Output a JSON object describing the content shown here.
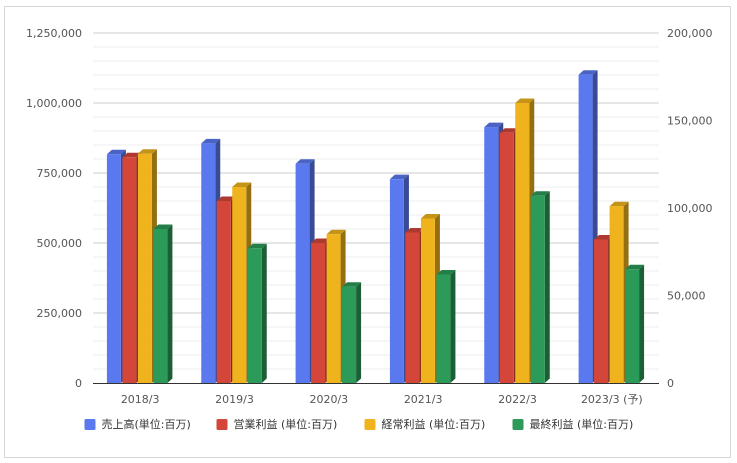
{
  "chart_data": {
    "type": "bar",
    "style": "3d-clustered",
    "categories": [
      "2018/3",
      "2019/3",
      "2020/3",
      "2021/3",
      "2022/3",
      "2023/3 (予)"
    ],
    "series": [
      {
        "name": "売上高(単位:百万)",
        "axis": "left",
        "color": "#5b79ef",
        "values": [
          817000,
          856000,
          783000,
          728000,
          914000,
          1101000
        ]
      },
      {
        "name": "営業利益 (単位:百万)",
        "axis": "right",
        "color": "#d4463a",
        "values": [
          129000,
          104000,
          80000,
          86000,
          143000,
          82000
        ]
      },
      {
        "name": "経常利益 (単位:百万)",
        "axis": "right",
        "color": "#efb31d",
        "values": [
          131000,
          112000,
          85000,
          94000,
          160000,
          101000
        ]
      },
      {
        "name": "最終利益 (単位:百万)",
        "axis": "right",
        "color": "#2c9a58",
        "values": [
          88000,
          77000,
          55000,
          62000,
          107000,
          65000
        ]
      }
    ],
    "left_axis": {
      "range": [
        0,
        1250000
      ],
      "ticks": [
        "0",
        "250,000",
        "500,000",
        "750,000",
        "1,000,000",
        "1,250,000"
      ]
    },
    "right_axis": {
      "range": [
        0,
        200000
      ],
      "ticks": [
        "0",
        "50,000",
        "100,000",
        "150,000",
        "200,000"
      ]
    },
    "grid": true,
    "legend": "bottom"
  }
}
